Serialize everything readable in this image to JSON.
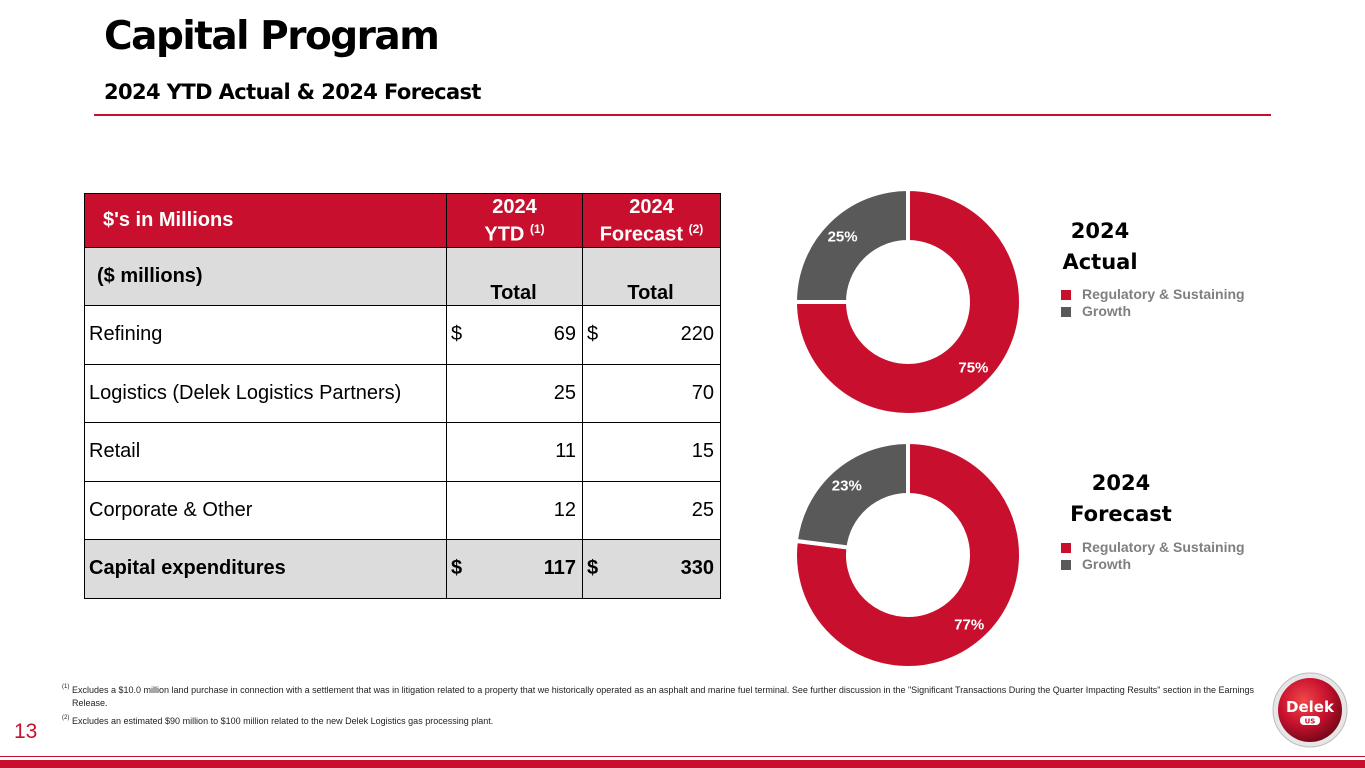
{
  "page": {
    "title": "Capital Program",
    "subtitle": "2024 YTD Actual & 2024 Forecast",
    "page_number": "13"
  },
  "table": {
    "header": {
      "label": "$'s in Millions",
      "col1_line1": "2024",
      "col1_line2": "YTD",
      "col1_note": "(1)",
      "col2_line1": "2024",
      "col2_line2": "Forecast",
      "col2_note": "(2)"
    },
    "subheader": {
      "label": "($ millions)",
      "col1": "Total",
      "col2": "Total"
    },
    "rows": [
      {
        "label": "Refining",
        "cur1": "$",
        "ytd": "69",
        "cur2": "$",
        "forecast": "220"
      },
      {
        "label": "Logistics (Delek Logistics Partners)",
        "ytd": "25",
        "forecast": "70"
      },
      {
        "label": "Retail",
        "ytd": "11",
        "forecast": "15"
      },
      {
        "label": "Corporate & Other",
        "ytd": "12",
        "forecast": "25"
      }
    ],
    "total": {
      "label": "Capital expenditures",
      "cur1": "$",
      "ytd": "117",
      "cur2": "$",
      "forecast": "330"
    }
  },
  "chart_data": [
    {
      "type": "pie",
      "title_line1": "2024",
      "title_line2": "Actual",
      "categories": [
        "Regulatory & Sustaining",
        "Growth"
      ],
      "values": [
        75,
        25
      ],
      "labels": [
        "75%",
        "25%"
      ],
      "colors": [
        "#c8102e",
        "#595959"
      ],
      "legend": "right"
    },
    {
      "type": "pie",
      "title_line1": "2024",
      "title_line2": "Forecast",
      "categories": [
        "Regulatory & Sustaining",
        "Growth"
      ],
      "values": [
        77,
        23
      ],
      "labels": [
        "77%",
        "23%"
      ],
      "colors": [
        "#c8102e",
        "#595959"
      ],
      "legend": "right"
    }
  ],
  "footnotes": [
    {
      "mark": "(1)",
      "text": "Excludes a $10.0 million land purchase in connection with a settlement that was in litigation related to a property that we historically operated as an asphalt and marine fuel terminal. See further discussion in the \"Significant Transactions During the Quarter Impacting Results\" section in the Earnings Release."
    },
    {
      "mark": "(2)",
      "text": "Excludes an estimated $90 million to $100 million related to the new Delek Logistics gas processing plant."
    }
  ],
  "logo": {
    "text": "Delek",
    "subtext": "US"
  },
  "colors": {
    "brand_red": "#c8102e",
    "growth_gray": "#595959",
    "header_gray": "#dcdcdc"
  }
}
